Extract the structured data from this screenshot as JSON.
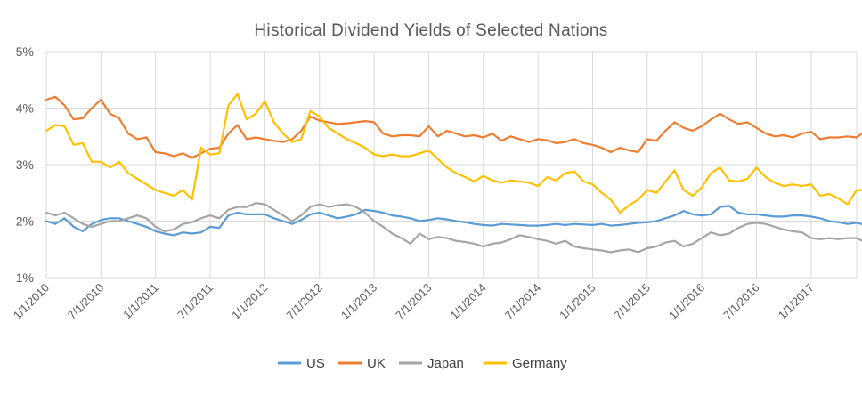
{
  "chart_data": {
    "type": "line",
    "title": "Historical Dividend Yields of Selected Nations",
    "xlabel": "",
    "ylabel": "",
    "y_unit": "%",
    "ylim": [
      1,
      5
    ],
    "y_ticks": [
      {
        "value": 1,
        "label": "1%"
      },
      {
        "value": 2,
        "label": "2%"
      },
      {
        "value": 3,
        "label": "3%"
      },
      {
        "value": 4,
        "label": "4%"
      },
      {
        "value": 5,
        "label": "5%"
      }
    ],
    "x_ticks": [
      {
        "label": "1/1/2010",
        "month_index": 0
      },
      {
        "label": "7/1/2010",
        "month_index": 6
      },
      {
        "label": "1/1/2011",
        "month_index": 12
      },
      {
        "label": "7/1/2011",
        "month_index": 18
      },
      {
        "label": "1/1/2012",
        "month_index": 24
      },
      {
        "label": "7/1/2012",
        "month_index": 30
      },
      {
        "label": "1/1/2013",
        "month_index": 36
      },
      {
        "label": "7/1/2013",
        "month_index": 42
      },
      {
        "label": "1/1/2014",
        "month_index": 48
      },
      {
        "label": "7/1/2014",
        "month_index": 54
      },
      {
        "label": "1/1/2015",
        "month_index": 60
      },
      {
        "label": "7/1/2015",
        "month_index": 66
      },
      {
        "label": "1/1/2016",
        "month_index": 72
      },
      {
        "label": "7/1/2016",
        "month_index": 78
      },
      {
        "label": "1/1/2017",
        "month_index": 84
      }
    ],
    "x_range_months": [
      0,
      89
    ],
    "grid": true,
    "legend_position": "bottom",
    "series": [
      {
        "name": "US",
        "color": "#5b9bd5",
        "values": [
          2.0,
          1.95,
          2.05,
          1.9,
          1.82,
          1.95,
          2.02,
          2.05,
          2.05,
          2.0,
          1.95,
          1.9,
          1.82,
          1.78,
          1.75,
          1.8,
          1.78,
          1.8,
          1.9,
          1.88,
          2.1,
          2.15,
          2.12,
          2.12,
          2.12,
          2.05,
          2.0,
          1.95,
          2.02,
          2.12,
          2.15,
          2.1,
          2.05,
          2.08,
          2.12,
          2.2,
          2.18,
          2.15,
          2.1,
          2.08,
          2.05,
          2.0,
          2.02,
          2.05,
          2.03,
          2.0,
          1.98,
          1.95,
          1.93,
          1.92,
          1.95,
          1.94,
          1.93,
          1.92,
          1.92,
          1.93,
          1.95,
          1.93,
          1.95,
          1.94,
          1.93,
          1.95,
          1.92,
          1.93,
          1.95,
          1.97,
          1.98,
          2.0,
          2.05,
          2.1,
          2.18,
          2.12,
          2.1,
          2.12,
          2.25,
          2.27,
          2.15,
          2.12,
          2.12,
          2.1,
          2.08,
          2.08,
          2.1,
          2.1,
          2.08,
          2.05,
          2.0,
          1.98,
          1.95,
          1.97,
          1.93
        ]
      },
      {
        "name": "UK",
        "color": "#ed7d31",
        "values": [
          4.15,
          4.2,
          4.05,
          3.8,
          3.82,
          4.0,
          4.15,
          3.9,
          3.82,
          3.55,
          3.45,
          3.48,
          3.22,
          3.2,
          3.15,
          3.2,
          3.12,
          3.2,
          3.28,
          3.3,
          3.55,
          3.7,
          3.45,
          3.48,
          3.45,
          3.42,
          3.4,
          3.45,
          3.6,
          3.85,
          3.78,
          3.75,
          3.72,
          3.73,
          3.75,
          3.77,
          3.75,
          3.55,
          3.5,
          3.52,
          3.52,
          3.5,
          3.68,
          3.5,
          3.6,
          3.55,
          3.5,
          3.52,
          3.48,
          3.55,
          3.42,
          3.5,
          3.45,
          3.4,
          3.45,
          3.43,
          3.38,
          3.4,
          3.45,
          3.38,
          3.35,
          3.3,
          3.22,
          3.3,
          3.25,
          3.22,
          3.45,
          3.42,
          3.6,
          3.75,
          3.65,
          3.6,
          3.68,
          3.8,
          3.9,
          3.8,
          3.72,
          3.75,
          3.65,
          3.55,
          3.5,
          3.52,
          3.48,
          3.55,
          3.58,
          3.45,
          3.48,
          3.48,
          3.5,
          3.48,
          3.6
        ]
      },
      {
        "name": "Japan",
        "color": "#a5a5a5",
        "values": [
          2.15,
          2.1,
          2.15,
          2.05,
          1.95,
          1.9,
          1.95,
          2.0,
          2.0,
          2.05,
          2.1,
          2.05,
          1.9,
          1.82,
          1.85,
          1.95,
          1.98,
          2.05,
          2.1,
          2.05,
          2.2,
          2.25,
          2.25,
          2.32,
          2.3,
          2.2,
          2.1,
          2.0,
          2.1,
          2.25,
          2.3,
          2.25,
          2.28,
          2.3,
          2.25,
          2.15,
          2.0,
          1.9,
          1.78,
          1.7,
          1.6,
          1.78,
          1.68,
          1.72,
          1.7,
          1.65,
          1.63,
          1.6,
          1.55,
          1.6,
          1.62,
          1.68,
          1.75,
          1.72,
          1.68,
          1.65,
          1.6,
          1.65,
          1.55,
          1.52,
          1.5,
          1.48,
          1.45,
          1.48,
          1.5,
          1.45,
          1.52,
          1.55,
          1.62,
          1.65,
          1.55,
          1.6,
          1.7,
          1.8,
          1.75,
          1.78,
          1.88,
          1.95,
          1.97,
          1.95,
          1.9,
          1.85,
          1.82,
          1.8,
          1.7,
          1.68,
          1.7,
          1.68,
          1.7,
          1.7,
          1.62
        ]
      },
      {
        "name": "Germany",
        "color": "#ffc000",
        "values": [
          3.6,
          3.7,
          3.68,
          3.35,
          3.38,
          3.05,
          3.05,
          2.95,
          3.05,
          2.85,
          2.75,
          2.65,
          2.55,
          2.5,
          2.45,
          2.55,
          2.38,
          3.3,
          3.18,
          3.2,
          4.05,
          4.25,
          3.8,
          3.9,
          4.12,
          3.75,
          3.55,
          3.4,
          3.45,
          3.95,
          3.85,
          3.65,
          3.55,
          3.45,
          3.38,
          3.3,
          3.18,
          3.15,
          3.18,
          3.15,
          3.15,
          3.2,
          3.25,
          3.1,
          2.95,
          2.85,
          2.78,
          2.7,
          2.8,
          2.72,
          2.68,
          2.72,
          2.7,
          2.68,
          2.62,
          2.78,
          2.72,
          2.85,
          2.88,
          2.7,
          2.65,
          2.5,
          2.38,
          2.15,
          2.28,
          2.38,
          2.55,
          2.5,
          2.7,
          2.9,
          2.55,
          2.45,
          2.6,
          2.85,
          2.95,
          2.72,
          2.7,
          2.75,
          2.95,
          2.78,
          2.68,
          2.62,
          2.65,
          2.62,
          2.65,
          2.45,
          2.48,
          2.4,
          2.3,
          2.55,
          2.55
        ]
      }
    ]
  }
}
